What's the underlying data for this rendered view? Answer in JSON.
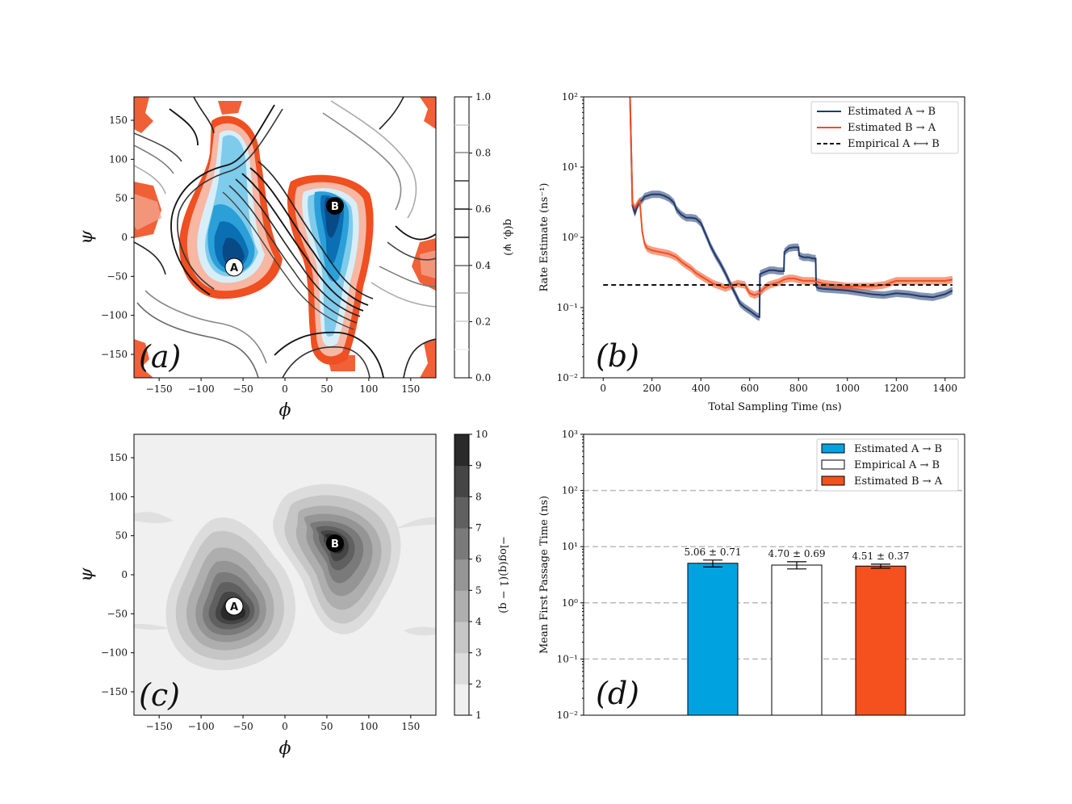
{
  "panels": {
    "a": {
      "label": "(a)",
      "xlabel": "ϕ",
      "ylabel": "ψ",
      "cbar_label": "q(ϕ, ψ)",
      "cbar_ticks": [
        "0.0",
        "0.2",
        "0.4",
        "0.6",
        "0.8",
        "1.0"
      ]
    },
    "b": {
      "label": "(b)",
      "xlabel": "Total Sampling Time (ns)",
      "ylabel": "Rate Estimate (ns⁻¹)"
    },
    "c": {
      "label": "(c)",
      "xlabel": "ϕ",
      "ylabel": "ψ",
      "cbar_label": "−log(q)(1 − q)",
      "cbar_ticks": [
        "1",
        "2",
        "3",
        "4",
        "5",
        "6",
        "7",
        "8",
        "9",
        "10"
      ]
    },
    "d": {
      "label": "(d)",
      "ylabel": "Mean First Passage Time (ns)"
    }
  },
  "markers": {
    "A": "A",
    "B": "B"
  },
  "angle_ticks": [
    "−150",
    "−100",
    "−50",
    "0",
    "50",
    "100",
    "150"
  ],
  "colors": {
    "blue": "#1f3a6e",
    "orange": "#ef4f21",
    "cyan": "#00a3e0",
    "red": "#f4511e"
  },
  "chart_data": [
    {
      "type": "heatmap",
      "title": "",
      "xlabel": "ϕ",
      "ylabel": "ψ",
      "xlim": [
        -180,
        180
      ],
      "ylim": [
        -180,
        180
      ],
      "colorbar": {
        "label": "q(ϕ, ψ)",
        "range": [
          0.0,
          1.0
        ]
      },
      "basins": [
        {
          "name": "A",
          "phi": -60,
          "psi": -40
        },
        {
          "name": "B",
          "phi": 60,
          "psi": 38
        }
      ]
    },
    {
      "type": "line",
      "xlabel": "Total Sampling Time (ns)",
      "ylabel": "Rate Estimate (ns⁻¹)",
      "xlim": [
        -80,
        1480
      ],
      "ylim": [
        0.01,
        100
      ],
      "yscale": "log",
      "legend_position": "top-right",
      "series": [
        {
          "name": "Estimated  A → B",
          "color": "#1f3a6e",
          "x": [
            110,
            120,
            130,
            140,
            150,
            160,
            170,
            180,
            200,
            230,
            250,
            270,
            290,
            300,
            320,
            340,
            360,
            380,
            400,
            420,
            440,
            460,
            480,
            500,
            520,
            540,
            560,
            580,
            600,
            620,
            630,
            640,
            642,
            660,
            680,
            700,
            720,
            740,
            742,
            760,
            780,
            800,
            802,
            820,
            840,
            860,
            870,
            872,
            880,
            900,
            950,
            1000,
            1050,
            1100,
            1150,
            1200,
            1250,
            1300,
            1350,
            1400,
            1430
          ],
          "y": [
            100,
            2.8,
            2.2,
            2.8,
            3.2,
            3.4,
            3.8,
            3.9,
            4.1,
            4.1,
            3.9,
            3.6,
            3.1,
            2.5,
            2.1,
            1.9,
            1.9,
            1.85,
            1.6,
            1.1,
            0.75,
            0.55,
            0.42,
            0.31,
            0.22,
            0.16,
            0.115,
            0.1,
            0.09,
            0.08,
            0.075,
            0.073,
            0.3,
            0.32,
            0.34,
            0.34,
            0.33,
            0.33,
            0.62,
            0.7,
            0.72,
            0.72,
            0.55,
            0.52,
            0.52,
            0.5,
            0.5,
            0.2,
            0.19,
            0.185,
            0.18,
            0.175,
            0.165,
            0.155,
            0.15,
            0.16,
            0.155,
            0.145,
            0.14,
            0.155,
            0.175
          ]
        },
        {
          "name": "Estimated  B → A",
          "color": "#ef4f21",
          "x": [
            110,
            120,
            130,
            140,
            150,
            160,
            170,
            180,
            200,
            230,
            250,
            270,
            280,
            300,
            320,
            340,
            360,
            380,
            400,
            450,
            500,
            520,
            550,
            580,
            600,
            620,
            640,
            660,
            680,
            700,
            720,
            740,
            760,
            780,
            800,
            820,
            840,
            860,
            880,
            900,
            950,
            1000,
            1050,
            1100,
            1150,
            1200,
            1250,
            1300,
            1350,
            1400,
            1430
          ],
          "y": [
            100,
            3.0,
            2.6,
            3.0,
            3.3,
            1.2,
            0.8,
            0.7,
            0.65,
            0.62,
            0.6,
            0.58,
            0.56,
            0.52,
            0.45,
            0.4,
            0.36,
            0.31,
            0.28,
            0.22,
            0.19,
            0.2,
            0.22,
            0.21,
            0.16,
            0.15,
            0.16,
            0.19,
            0.21,
            0.22,
            0.23,
            0.25,
            0.26,
            0.26,
            0.25,
            0.24,
            0.24,
            0.24,
            0.23,
            0.22,
            0.21,
            0.2,
            0.2,
            0.2,
            0.21,
            0.24,
            0.24,
            0.24,
            0.24,
            0.24,
            0.25
          ]
        },
        {
          "name": "Empirical  A ⟷ B",
          "color": "#111111",
          "dashed": true,
          "x": [
            0,
            1430
          ],
          "y": [
            0.21,
            0.21
          ]
        }
      ]
    },
    {
      "type": "heatmap",
      "title": "",
      "xlabel": "ϕ",
      "ylabel": "ψ",
      "xlim": [
        -180,
        180
      ],
      "ylim": [
        -180,
        180
      ],
      "colorbar": {
        "label": "−log(q)(1 − q)",
        "range": [
          1,
          10
        ]
      },
      "basins": [
        {
          "name": "A",
          "phi": -60,
          "psi": -40
        },
        {
          "name": "B",
          "phi": 60,
          "psi": 40
        }
      ]
    },
    {
      "type": "bar",
      "ylabel": "Mean First Passage Time (ns)",
      "yscale": "log",
      "ylim": [
        0.01,
        1000
      ],
      "legend_position": "top-right",
      "categories": [
        "Estimated  A → B",
        "Empirical  A → B",
        "Estimated  B → A"
      ],
      "values": [
        5.06,
        4.7,
        4.51
      ],
      "errors": [
        0.71,
        0.69,
        0.37
      ],
      "labels": [
        "5.06 ± 0.71",
        "4.70 ± 0.69",
        "4.51 ± 0.37"
      ],
      "colors": [
        "#00a3e0",
        "#ffffff",
        "#f4511e"
      ]
    }
  ]
}
